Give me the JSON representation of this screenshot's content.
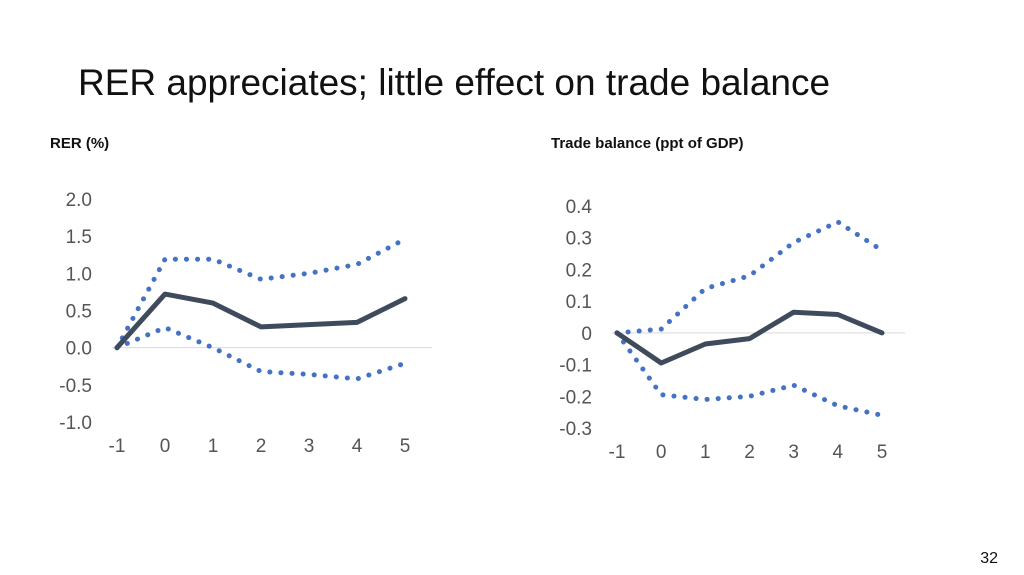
{
  "slide": {
    "title": "RER appreciates; little effect on trade balance",
    "page_number": "32"
  },
  "colors": {
    "main_line": "#3f4b5c",
    "band_line": "#4472c4",
    "zero_line": "#d9d9d9",
    "tick_text": "#555555"
  },
  "chart_data": [
    {
      "type": "line",
      "title": "RER (%)",
      "x": [
        -1,
        0,
        1,
        2,
        3,
        4,
        5
      ],
      "x_tick_labels": [
        "-1",
        "0",
        "1",
        "2",
        "3",
        "4",
        "5"
      ],
      "ylim": [
        -1.0,
        2.0
      ],
      "y_ticks": [
        2.0,
        1.5,
        1.0,
        0.5,
        0.0,
        -0.5,
        -1.0
      ],
      "y_tick_labels": [
        "2.0",
        "1.5",
        "1.0",
        "0.5",
        "0.0",
        "-0.5",
        "-1.0"
      ],
      "grid": false,
      "legend": "none",
      "series": [
        {
          "style": "solid",
          "values": [
            0.0,
            0.72,
            0.6,
            0.28,
            0.31,
            0.34,
            0.66
          ]
        },
        {
          "style": "dotted",
          "values": [
            0.0,
            1.19,
            1.19,
            0.92,
            1.0,
            1.12,
            1.46
          ]
        },
        {
          "style": "dotted",
          "values": [
            0.0,
            0.27,
            0.0,
            -0.32,
            -0.36,
            -0.42,
            -0.21
          ]
        }
      ]
    },
    {
      "type": "line",
      "title": "Trade balance (ppt of GDP)",
      "x": [
        -1,
        0,
        1,
        2,
        3,
        4,
        5
      ],
      "x_tick_labels": [
        "-1",
        "0",
        "1",
        "2",
        "3",
        "4",
        "5"
      ],
      "ylim": [
        -0.3,
        0.4
      ],
      "y_ticks": [
        0.4,
        0.3,
        0.2,
        0.1,
        0,
        -0.1,
        -0.2,
        -0.3
      ],
      "y_tick_labels": [
        "0.4",
        "0.3",
        "0.2",
        "0.1",
        "0",
        "-0.1",
        "-0.2",
        "-0.3"
      ],
      "grid": false,
      "legend": "none",
      "series": [
        {
          "style": "solid",
          "values": [
            0.0,
            -0.095,
            -0.035,
            -0.018,
            0.065,
            0.058,
            0.0
          ]
        },
        {
          "style": "dotted",
          "values": [
            0.0,
            0.012,
            0.14,
            0.18,
            0.285,
            0.35,
            0.26
          ]
        },
        {
          "style": "dotted",
          "values": [
            0.0,
            -0.195,
            -0.21,
            -0.2,
            -0.165,
            -0.23,
            -0.26
          ]
        }
      ]
    }
  ]
}
